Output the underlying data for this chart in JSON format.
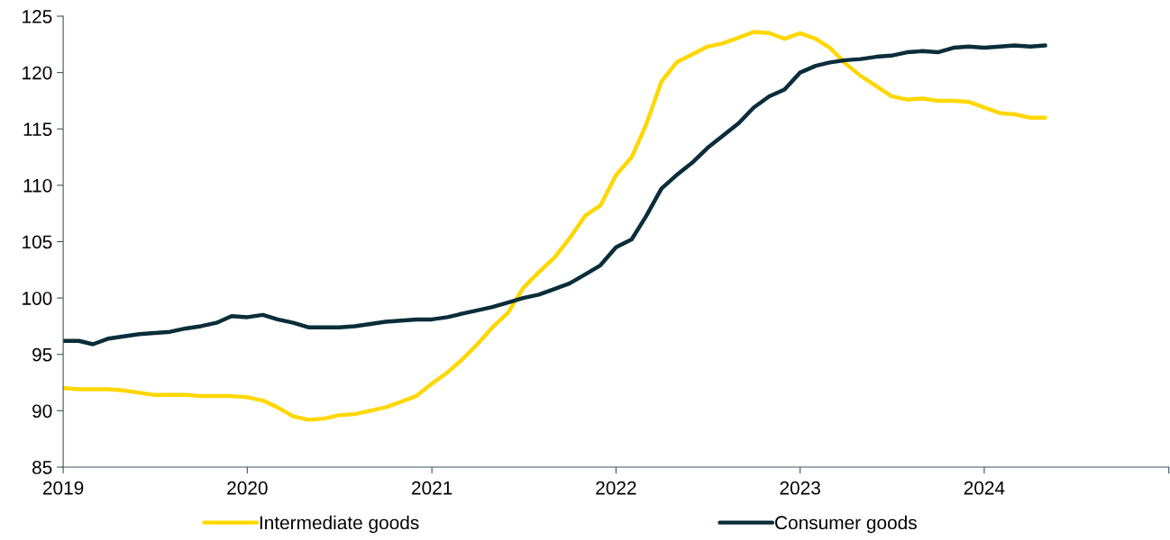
{
  "chart_data": {
    "type": "line",
    "x": [
      "2019-01",
      "2019-02",
      "2019-03",
      "2019-04",
      "2019-05",
      "2019-06",
      "2019-07",
      "2019-08",
      "2019-09",
      "2019-10",
      "2019-11",
      "2019-12",
      "2020-01",
      "2020-02",
      "2020-03",
      "2020-04",
      "2020-05",
      "2020-06",
      "2020-07",
      "2020-08",
      "2020-09",
      "2020-10",
      "2020-11",
      "2020-12",
      "2021-01",
      "2021-02",
      "2021-03",
      "2021-04",
      "2021-05",
      "2021-06",
      "2021-07",
      "2021-08",
      "2021-09",
      "2021-10",
      "2021-11",
      "2021-12",
      "2022-01",
      "2022-02",
      "2022-03",
      "2022-04",
      "2022-05",
      "2022-06",
      "2022-07",
      "2022-08",
      "2022-09",
      "2022-10",
      "2022-11",
      "2022-12",
      "2023-01",
      "2023-02",
      "2023-03",
      "2023-04",
      "2023-05",
      "2023-06",
      "2023-07",
      "2023-08",
      "2023-09",
      "2023-10",
      "2023-11",
      "2023-12",
      "2024-01",
      "2024-02",
      "2024-03",
      "2024-04",
      "2024-05"
    ],
    "series": [
      {
        "name": "Intermediate goods",
        "color": "#ffd700",
        "values": [
          92.0,
          91.9,
          91.9,
          91.9,
          91.8,
          91.6,
          91.4,
          91.4,
          91.4,
          91.3,
          91.3,
          91.3,
          91.2,
          90.9,
          90.3,
          89.5,
          89.2,
          89.3,
          89.6,
          89.7,
          90.0,
          90.3,
          90.8,
          91.3,
          92.4,
          93.4,
          94.5,
          95.9,
          97.4,
          98.7,
          100.9,
          102.3,
          103.6,
          105.3,
          107.3,
          108.2,
          110.9,
          112.5,
          115.3,
          119.2,
          120.9,
          121.6,
          122.3,
          122.6,
          123.1,
          123.6,
          123.5,
          123.0,
          123.5,
          123.0,
          122.2,
          120.8,
          119.7,
          118.8,
          117.9,
          117.6,
          117.7,
          117.5,
          117.5,
          117.4,
          116.9,
          116.4,
          116.3,
          116.0,
          116.0
        ]
      },
      {
        "name": "Consumer goods",
        "color": "#0a2d3a",
        "values": [
          96.2,
          96.2,
          95.9,
          96.4,
          96.6,
          96.8,
          96.9,
          97.0,
          97.3,
          97.5,
          97.8,
          98.4,
          98.3,
          98.5,
          98.1,
          97.8,
          97.4,
          97.4,
          97.4,
          97.5,
          97.7,
          97.9,
          98.0,
          98.1,
          98.1,
          98.3,
          98.6,
          98.9,
          99.2,
          99.6,
          100.0,
          100.3,
          100.8,
          101.3,
          102.1,
          102.9,
          104.5,
          105.2,
          107.2,
          109.7,
          110.9,
          112.0,
          113.3,
          114.4,
          115.5,
          116.9,
          117.9,
          118.5,
          120.0,
          120.6,
          120.9,
          121.1,
          121.2,
          121.4,
          121.5,
          121.8,
          121.9,
          121.8,
          122.2,
          122.3,
          122.2,
          122.3,
          122.4,
          122.3,
          122.4
        ]
      }
    ],
    "xlim": [
      "2019",
      "2025"
    ],
    "xticks": [
      "2019",
      "2020",
      "2021",
      "2022",
      "2023",
      "2024",
      {
        "value": "2025",
        "label": null
      }
    ],
    "ylim": [
      85,
      125
    ],
    "yticks": [
      85,
      90,
      95,
      100,
      105,
      110,
      115,
      120,
      125
    ],
    "legend": "bottom",
    "grid": false,
    "marker": "none",
    "line_style": "solid"
  }
}
